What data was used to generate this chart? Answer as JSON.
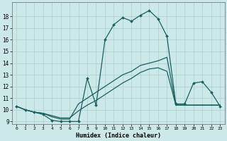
{
  "title": "",
  "xlabel": "Humidex (Indice chaleur)",
  "bg_color": "#cce8e8",
  "grid_color": "#aacfcf",
  "line_color": "#1a6060",
  "xlim": [
    -0.5,
    23.5
  ],
  "ylim": [
    8.8,
    19.2
  ],
  "yticks": [
    9,
    10,
    11,
    12,
    13,
    14,
    15,
    16,
    17,
    18
  ],
  "xticks": [
    0,
    1,
    2,
    3,
    4,
    5,
    6,
    7,
    8,
    9,
    10,
    11,
    12,
    13,
    14,
    15,
    16,
    17,
    18,
    19,
    20,
    21,
    22,
    23
  ],
  "line1_x": [
    0,
    1,
    2,
    3,
    4,
    5,
    6,
    7,
    8,
    9,
    10,
    11,
    12,
    13,
    14,
    15,
    16,
    17,
    18,
    19,
    20,
    21,
    22,
    23
  ],
  "line1_y": [
    10.3,
    10.0,
    9.8,
    9.6,
    9.1,
    9.0,
    9.0,
    9.0,
    12.7,
    10.4,
    16.0,
    17.3,
    17.9,
    17.6,
    18.1,
    18.5,
    17.8,
    16.3,
    10.5,
    10.5,
    12.3,
    12.4,
    11.5,
    10.3
  ],
  "line2_x": [
    0,
    1,
    2,
    3,
    4,
    5,
    6,
    7,
    8,
    9,
    10,
    11,
    12,
    13,
    14,
    15,
    16,
    17,
    18,
    19,
    20,
    21,
    22,
    23
  ],
  "line2_y": [
    10.3,
    10.0,
    9.8,
    9.7,
    9.4,
    9.2,
    9.2,
    10.5,
    11.0,
    11.5,
    12.0,
    12.5,
    13.0,
    13.3,
    13.8,
    14.0,
    14.2,
    14.5,
    10.4,
    10.4,
    10.4,
    10.4,
    10.4,
    10.4
  ],
  "line3_x": [
    0,
    1,
    2,
    3,
    4,
    5,
    6,
    7,
    8,
    9,
    10,
    11,
    12,
    13,
    14,
    15,
    16,
    17,
    18,
    19,
    20,
    21,
    22,
    23
  ],
  "line3_y": [
    10.3,
    10.0,
    9.8,
    9.7,
    9.5,
    9.3,
    9.3,
    9.9,
    10.4,
    10.8,
    11.3,
    11.8,
    12.3,
    12.7,
    13.2,
    13.5,
    13.6,
    13.3,
    10.4,
    10.4,
    10.4,
    10.4,
    10.4,
    10.4
  ]
}
